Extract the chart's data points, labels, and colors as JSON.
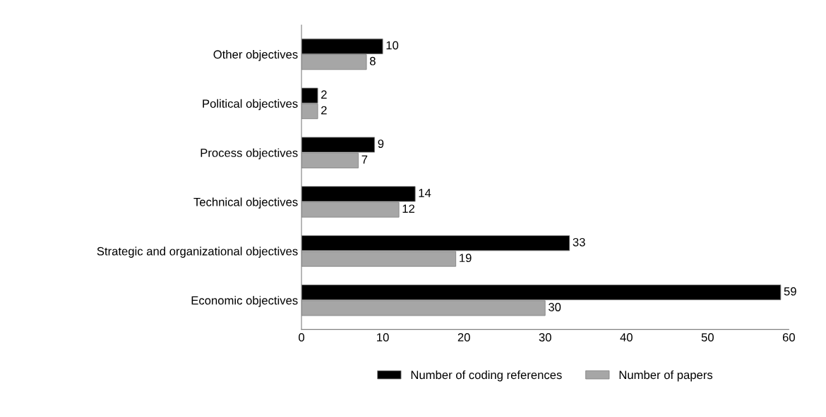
{
  "chart_data": {
    "type": "bar",
    "orientation": "horizontal",
    "categories": [
      "Other objectives",
      "Political objectives",
      "Process objectives",
      "Technical objectives",
      "Strategic and organizational objectives",
      "Economic objectives"
    ],
    "series": [
      {
        "name": "Number of coding references",
        "color": "#000000",
        "values": [
          10,
          2,
          9,
          14,
          33,
          59
        ]
      },
      {
        "name": "Number of papers",
        "color": "#a6a6a6",
        "values": [
          8,
          2,
          7,
          12,
          19,
          30
        ]
      }
    ],
    "xlim": [
      0,
      60
    ],
    "xticks": [
      0,
      10,
      20,
      30,
      40,
      50,
      60
    ],
    "data_labels": true,
    "grid": false,
    "legend": "bottom"
  }
}
